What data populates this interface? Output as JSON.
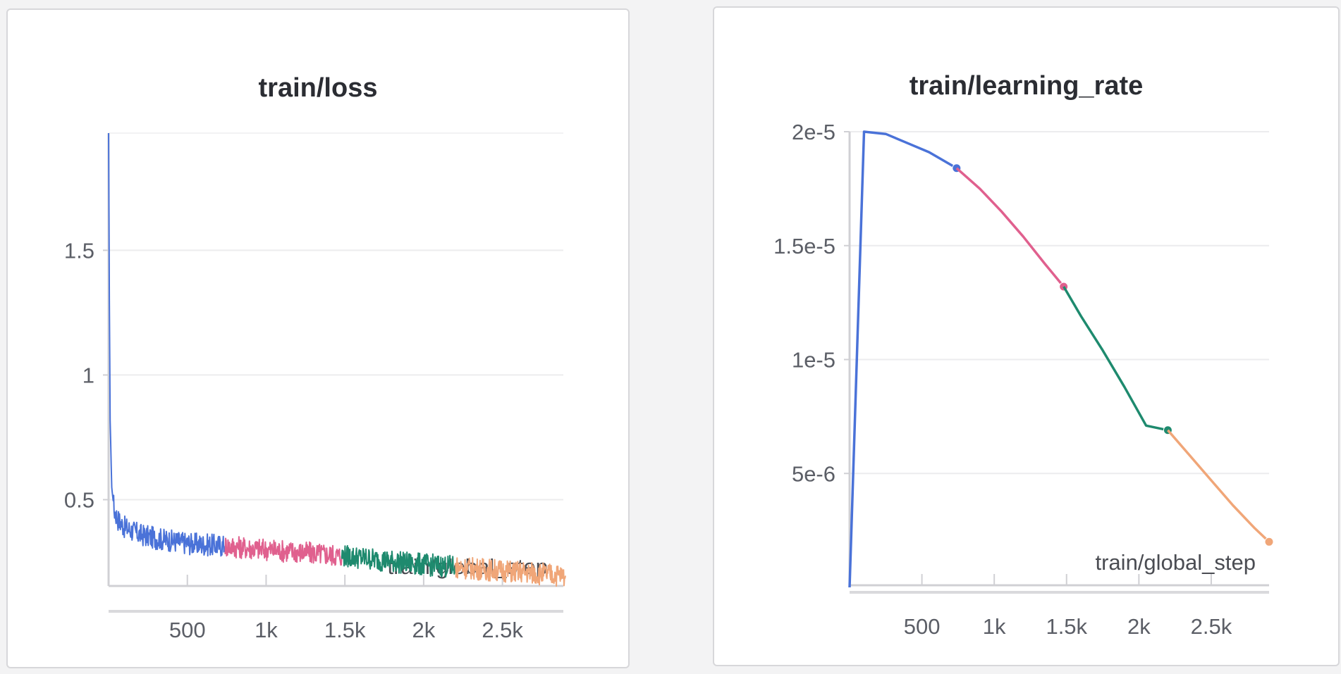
{
  "chart_data": [
    {
      "type": "line",
      "title": "train/loss",
      "xlabel": "train/global_step",
      "ylabel": "",
      "xlim": [
        0,
        2900
      ],
      "ylim": [
        0.12,
        1.97
      ],
      "x_ticks": [
        500,
        1000,
        1500,
        2000,
        2500
      ],
      "x_tick_labels": [
        "500",
        "1k",
        "1.5k",
        "2k",
        "2.5k"
      ],
      "y_ticks": [
        0.5,
        1,
        1.5
      ],
      "y_tick_labels": [
        "0.5",
        "1",
        "1.5"
      ],
      "grid": true,
      "legend": "none",
      "series": [
        {
          "color": "#4a72d8",
          "x": [
            0,
            5,
            10,
            20,
            35,
            60,
            100,
            200,
            300,
            400,
            500,
            600,
            740
          ],
          "y": [
            1.97,
            1.3,
            0.82,
            0.55,
            0.46,
            0.42,
            0.39,
            0.36,
            0.345,
            0.335,
            0.325,
            0.32,
            0.315
          ]
        },
        {
          "color": "#e0608e",
          "x": [
            740,
            900,
            1100,
            1300,
            1480
          ],
          "y": [
            0.315,
            0.305,
            0.295,
            0.285,
            0.275
          ]
        },
        {
          "color": "#1e8a6e",
          "x": [
            1480,
            1700,
            1900,
            2100,
            2200
          ],
          "y": [
            0.275,
            0.26,
            0.245,
            0.235,
            0.23
          ]
        },
        {
          "color": "#f0a678",
          "x": [
            2200,
            2400,
            2600,
            2800,
            2900
          ],
          "y": [
            0.23,
            0.22,
            0.21,
            0.2,
            0.195
          ]
        }
      ]
    },
    {
      "type": "line",
      "title": "train/learning_rate",
      "xlabel": "train/global_step",
      "ylabel": "",
      "xlim": [
        0,
        2900
      ],
      "ylim": [
        0,
        2e-05
      ],
      "x_ticks": [
        500,
        1000,
        1500,
        2000,
        2500
      ],
      "x_tick_labels": [
        "500",
        "1k",
        "1.5k",
        "2k",
        "2.5k"
      ],
      "y_ticks": [
        5e-06,
        1e-05,
        1.5e-05,
        2e-05
      ],
      "y_tick_labels": [
        "5e-6",
        "1e-5",
        "1.5e-5",
        "2e-5"
      ],
      "grid": true,
      "legend": "none",
      "series": [
        {
          "color": "#4a72d8",
          "x": [
            0,
            100,
            250,
            400,
            550,
            740
          ],
          "y": [
            0,
            2e-05,
            1.99e-05,
            1.95e-05,
            1.91e-05,
            1.84e-05
          ]
        },
        {
          "color": "#e0608e",
          "x": [
            740,
            900,
            1050,
            1200,
            1350,
            1480
          ],
          "y": [
            1.84e-05,
            1.75e-05,
            1.65e-05,
            1.54e-05,
            1.42e-05,
            1.32e-05
          ]
        },
        {
          "color": "#1e8a6e",
          "x": [
            1480,
            1600,
            1750,
            1900,
            2050,
            2200
          ],
          "y": [
            1.32e-05,
            1.19e-05,
            1.04e-05,
            8.8e-06,
            7.1e-06,
            6.9e-06
          ]
        },
        {
          "color": "#f0a678",
          "x": [
            2200,
            2350,
            2500,
            2650,
            2800,
            2900
          ],
          "y": [
            6.9e-06,
            5.8e-06,
            4.7e-06,
            3.6e-06,
            2.6e-06,
            2e-06
          ]
        }
      ]
    }
  ]
}
